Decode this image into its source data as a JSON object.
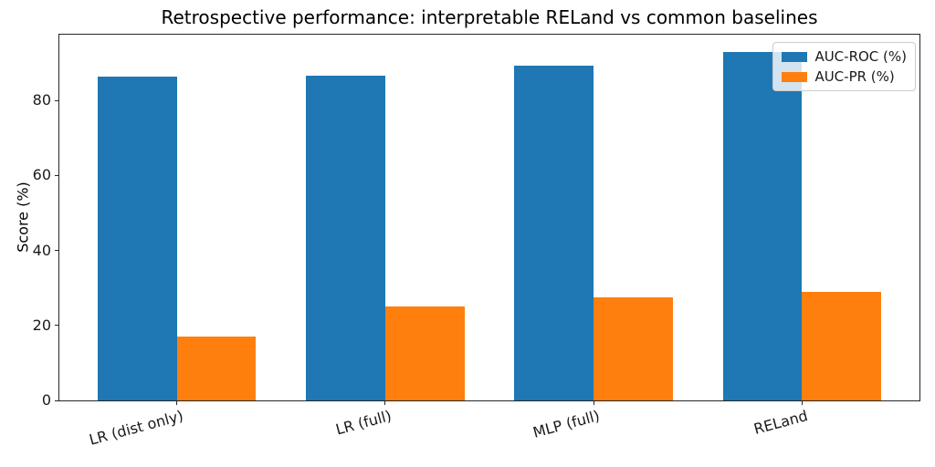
{
  "chart_data": {
    "type": "bar",
    "title": "Retrospective performance: interpretable RELand vs common baselines",
    "categories": [
      "LR (dist only)",
      "LR (full)",
      "MLP (full)",
      "RELand"
    ],
    "series": [
      {
        "name": "AUC-ROC (%)",
        "color": "#1f77b4",
        "values": [
          86.3,
          86.6,
          89.3,
          92.9
        ]
      },
      {
        "name": "AUC-PR (%)",
        "color": "#ff7f0e",
        "values": [
          17.0,
          25.0,
          27.6,
          29.0
        ]
      }
    ],
    "xlabel": "",
    "ylabel": "Score (%)",
    "ylim": [
      0,
      97.6
    ],
    "yticks": [
      0,
      20,
      40,
      60,
      80
    ],
    "bar_width_units": 0.38,
    "xtick_rotation_deg": 15,
    "legend_position": "upper right",
    "grid": false,
    "background_color": "#ffffff",
    "spine_color": "#262626"
  }
}
